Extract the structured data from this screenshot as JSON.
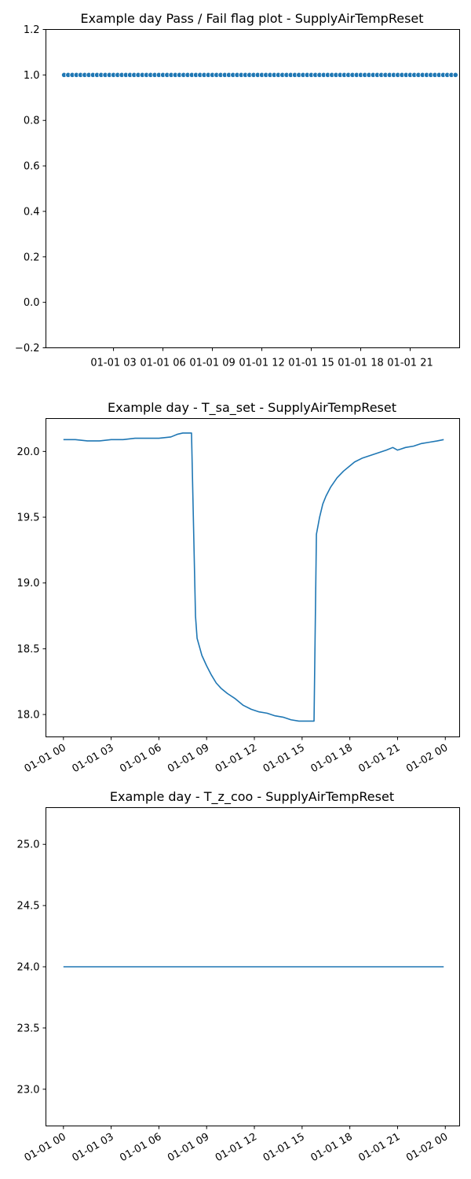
{
  "chart_data": [
    {
      "type": "scatter",
      "title": "Example day Pass / Fail flag plot - SupplyAirTempReset",
      "xlabel": "",
      "ylabel": "",
      "x_range": [
        "2019-01-01 00:00",
        "2019-01-02 00:00"
      ],
      "ylim": [
        -0.2,
        1.2
      ],
      "yticks": [
        "−0.2",
        "0.0",
        "0.2",
        "0.4",
        "0.6",
        "0.8",
        "1.0",
        "1.2"
      ],
      "yticks_values": [
        -0.2,
        0.0,
        0.2,
        0.4,
        0.6,
        0.8,
        1.0,
        1.2
      ],
      "xticks": [
        "01-01 03",
        "01-01 06",
        "01-01 09",
        "01-01 12",
        "01-01 15",
        "01-01 18",
        "01-01 21"
      ],
      "xticks_hours": [
        3,
        6,
        9,
        12,
        15,
        18,
        21
      ],
      "series": [
        {
          "marker": "circle",
          "color": "#1f77b4",
          "x_hours_step": 0.25,
          "x_hours_start": 0,
          "x_hours_end": 23.75,
          "y_constant": 1.0
        }
      ],
      "grid": false,
      "legend": "none"
    },
    {
      "type": "line",
      "title": "Example day - T_sa_set - SupplyAirTempReset",
      "xlabel": "",
      "ylabel": "",
      "x_range_hours": [
        -1.1,
        24.9
      ],
      "ylim": [
        17.83,
        20.25
      ],
      "yticks": [
        "18.0",
        "18.5",
        "19.0",
        "19.5",
        "20.0"
      ],
      "yticks_values": [
        18.0,
        18.5,
        19.0,
        19.5,
        20.0
      ],
      "xticks": [
        "01-01 00",
        "01-01 03",
        "01-01 06",
        "01-01 09",
        "01-01 12",
        "01-01 15",
        "01-01 18",
        "01-01 21",
        "01-02 00"
      ],
      "xticks_hours": [
        0,
        3,
        6,
        9,
        12,
        15,
        18,
        21,
        24
      ],
      "series": [
        {
          "color": "#1f77b4",
          "x": [
            0,
            0.75,
            1.5,
            2.25,
            3,
            3.75,
            4.5,
            5.25,
            6,
            6.75,
            7.15,
            7.5,
            8.05,
            8.3,
            8.4,
            8.7,
            9,
            9.3,
            9.6,
            9.9,
            10.3,
            10.8,
            11.3,
            11.8,
            12.3,
            12.8,
            13.3,
            13.8,
            14.3,
            14.8,
            15.3,
            15.75,
            15.9,
            16.1,
            16.3,
            16.5,
            16.8,
            17.2,
            17.6,
            18,
            18.3,
            18.8,
            19.3,
            19.8,
            20.3,
            20.7,
            21,
            21.5,
            22,
            22.5,
            23,
            23.5,
            23.9
          ],
          "y": [
            20.09,
            20.09,
            20.08,
            20.08,
            20.09,
            20.09,
            20.1,
            20.1,
            20.1,
            20.11,
            20.13,
            20.14,
            20.14,
            18.75,
            18.58,
            18.45,
            18.37,
            18.3,
            18.24,
            18.2,
            18.16,
            18.12,
            18.07,
            18.04,
            18.02,
            18.01,
            17.99,
            17.98,
            17.96,
            17.95,
            17.95,
            17.95,
            19.37,
            19.5,
            19.6,
            19.66,
            19.73,
            19.8,
            19.85,
            19.89,
            19.92,
            19.95,
            19.97,
            19.99,
            20.01,
            20.03,
            20.01,
            20.03,
            20.04,
            20.06,
            20.07,
            20.08,
            20.09
          ]
        }
      ],
      "grid": false,
      "legend": "none"
    },
    {
      "type": "line",
      "title": "Example day - T_z_coo - SupplyAirTempReset",
      "xlabel": "",
      "ylabel": "",
      "x_range_hours": [
        -1.1,
        24.9
      ],
      "ylim": [
        22.7,
        25.3
      ],
      "yticks": [
        "23.0",
        "23.5",
        "24.0",
        "24.5",
        "25.0"
      ],
      "yticks_values": [
        23.0,
        23.5,
        24.0,
        24.5,
        25.0
      ],
      "xticks": [
        "01-01 00",
        "01-01 03",
        "01-01 06",
        "01-01 09",
        "01-01 12",
        "01-01 15",
        "01-01 18",
        "01-01 21",
        "01-02 00"
      ],
      "xticks_hours": [
        0,
        3,
        6,
        9,
        12,
        15,
        18,
        21,
        24
      ],
      "series": [
        {
          "color": "#1f77b4",
          "x": [
            0,
            23.9
          ],
          "y": [
            24.0,
            24.0
          ]
        }
      ],
      "grid": false,
      "legend": "none"
    }
  ]
}
